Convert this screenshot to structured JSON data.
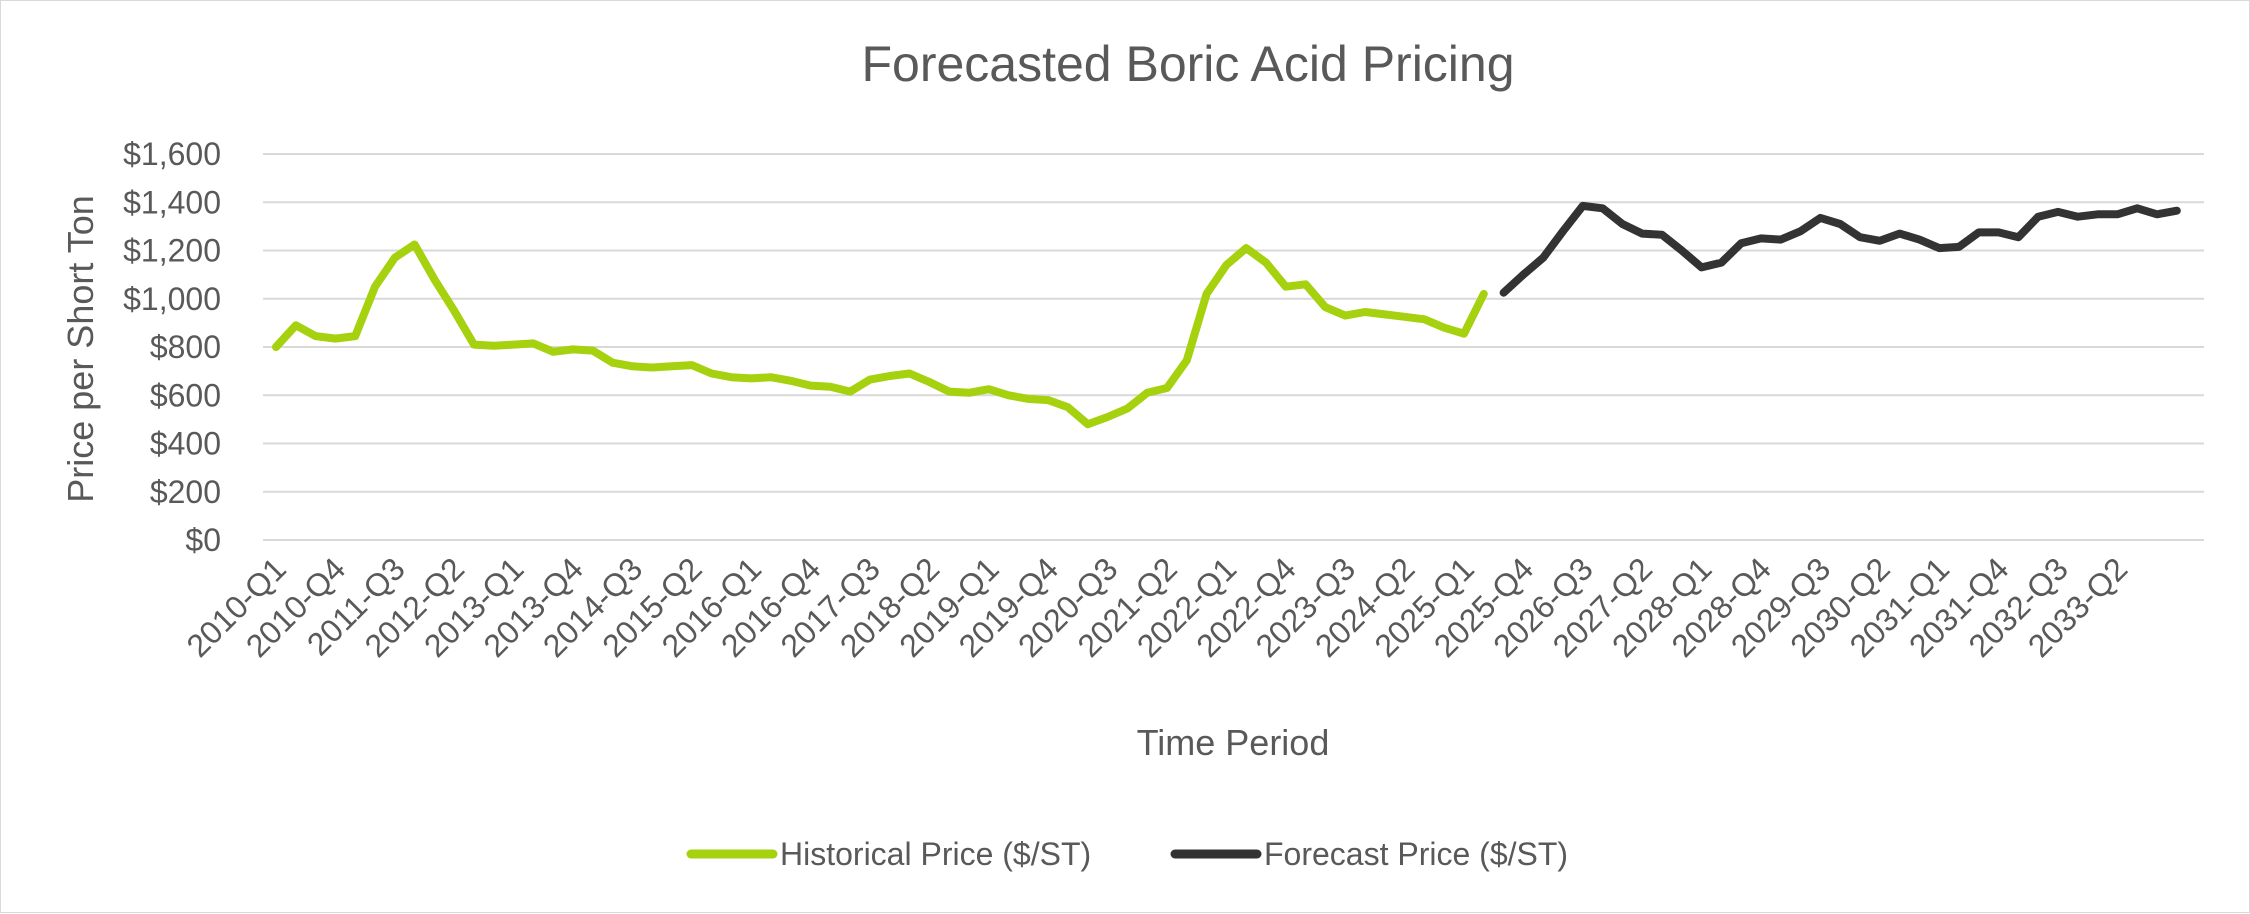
{
  "chart_data": {
    "type": "line",
    "title": "Forecasted Boric Acid Pricing",
    "xlabel": "Time Period",
    "ylabel": "Price per Short Ton",
    "ylim": [
      0,
      1600
    ],
    "y_ticks": [
      0,
      200,
      400,
      600,
      800,
      1000,
      1200,
      1400,
      1600
    ],
    "y_tick_labels": [
      "$0",
      "$200",
      "$400",
      "$600",
      "$800",
      "$1,000",
      "$1,200",
      "$1,400",
      "$1,600"
    ],
    "grid": true,
    "legend_position": "bottom",
    "x_tick_labels": [
      "2010-Q1",
      "2010-Q4",
      "2011-Q3",
      "2012-Q2",
      "2013-Q1",
      "2013-Q4",
      "2014-Q3",
      "2015-Q2",
      "2016-Q1",
      "2016-Q4",
      "2017-Q3",
      "2018-Q2",
      "2019-Q1",
      "2019-Q4",
      "2020-Q3",
      "2021-Q2",
      "2022-Q1",
      "2022-Q4",
      "2023-Q3",
      "2024-Q2",
      "2025-Q1",
      "2025-Q4",
      "2026-Q3",
      "2027-Q2",
      "2028-Q1",
      "2028-Q4",
      "2029-Q3",
      "2030-Q2",
      "2031-Q1",
      "2031-Q4",
      "2032-Q3",
      "2033-Q2"
    ],
    "series": [
      {
        "name": "Historical Price ($/ST)",
        "color": "#a5d10e",
        "start_period": "2010-Q1",
        "values": [
          800,
          890,
          845,
          835,
          845,
          1050,
          1170,
          1225,
          1080,
          950,
          810,
          805,
          810,
          815,
          780,
          790,
          785,
          735,
          720,
          715,
          720,
          725,
          690,
          675,
          670,
          675,
          660,
          640,
          635,
          615,
          665,
          680,
          690,
          655,
          615,
          610,
          625,
          600,
          585,
          580,
          550,
          480,
          510,
          545,
          610,
          630,
          745,
          1020,
          1140,
          1210,
          1150,
          1050,
          1060,
          965,
          930,
          945,
          935,
          925,
          915,
          880,
          855,
          1020
        ]
      },
      {
        "name": "Forecast Price ($/ST)",
        "color": "#333333",
        "start_period": "2025-Q2",
        "values": [
          1025,
          1100,
          1170,
          1280,
          1385,
          1375,
          1310,
          1270,
          1265,
          1200,
          1130,
          1150,
          1230,
          1250,
          1245,
          1280,
          1335,
          1310,
          1255,
          1240,
          1270,
          1245,
          1210,
          1215,
          1275,
          1275,
          1255,
          1340,
          1360,
          1340,
          1350,
          1350,
          1375,
          1350,
          1365
        ]
      }
    ]
  }
}
